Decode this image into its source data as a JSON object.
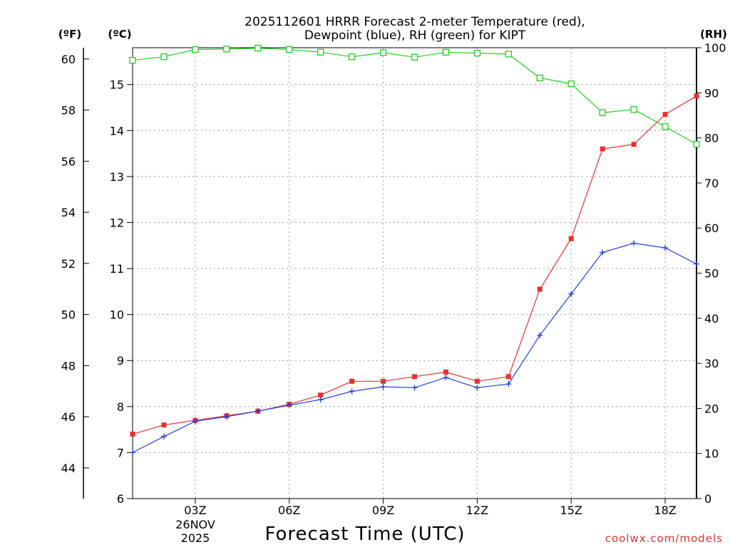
{
  "chart_data": {
    "type": "line",
    "title_line1": "2025112601 HRRR Forecast 2-meter Temperature (red),",
    "title_line2": "Dewpoint (blue), RH (green) for KIPT",
    "xlabel": "Forecast Time (UTC)",
    "date_line1": "26NOV",
    "date_line2": "2025",
    "unit_f": "(ºF)",
    "unit_c": "(ºC)",
    "unit_rh": "(RH)",
    "watermark": "coolwx.com/models",
    "x_hours": [
      1,
      2,
      3,
      4,
      5,
      6,
      7,
      8,
      9,
      10,
      11,
      12,
      13,
      14,
      15,
      16,
      17,
      18,
      19
    ],
    "xlim": [
      1,
      19
    ],
    "x_ticks": [
      {
        "hour": 3,
        "label": "03Z"
      },
      {
        "hour": 6,
        "label": "06Z"
      },
      {
        "hour": 9,
        "label": "09Z"
      },
      {
        "hour": 12,
        "label": "12Z"
      },
      {
        "hour": 15,
        "label": "15Z"
      },
      {
        "hour": 18,
        "label": "18Z"
      }
    ],
    "ylim_c": [
      6,
      15.8
    ],
    "yticks_c": [
      6,
      7,
      8,
      9,
      10,
      11,
      12,
      13,
      14,
      15
    ],
    "yticks_f": [
      44,
      46,
      48,
      50,
      52,
      54,
      56,
      58,
      60
    ],
    "ylim_rh": [
      0,
      100
    ],
    "yticks_rh": [
      0,
      10,
      20,
      30,
      40,
      50,
      60,
      70,
      80,
      90,
      100
    ],
    "series": [
      {
        "name": "Temperature",
        "color": "#e83030",
        "axis": "c",
        "marker": "filled-square",
        "values": [
          7.4,
          7.6,
          7.7,
          7.8,
          7.9,
          8.05,
          8.25,
          8.55,
          8.55,
          8.65,
          8.75,
          8.55,
          8.65,
          10.55,
          11.65,
          13.6,
          13.7,
          14.35,
          14.75
        ]
      },
      {
        "name": "Dewpoint",
        "color": "#2040e0",
        "axis": "c",
        "marker": "plus",
        "values": [
          7.0,
          7.35,
          7.68,
          7.78,
          7.9,
          8.03,
          8.15,
          8.33,
          8.43,
          8.41,
          8.63,
          8.41,
          8.49,
          9.55,
          10.45,
          11.35,
          11.55,
          11.45,
          11.1
        ]
      },
      {
        "name": "RH",
        "color": "#20d020",
        "axis": "rh",
        "marker": "open-square",
        "values": [
          97.2,
          98.0,
          99.6,
          99.7,
          99.9,
          99.6,
          99.0,
          98.0,
          98.9,
          97.9,
          99.0,
          98.8,
          98.6,
          93.3,
          92.0,
          85.6,
          86.3,
          82.5,
          78.6
        ]
      }
    ]
  }
}
